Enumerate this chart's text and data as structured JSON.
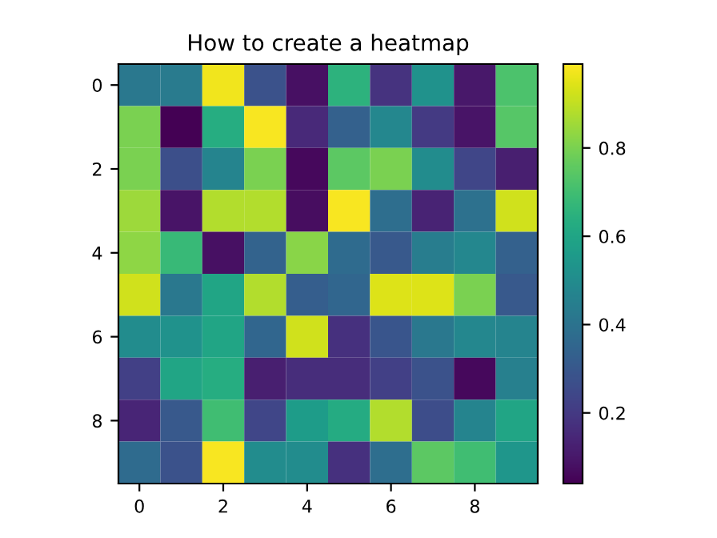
{
  "chart_data": {
    "type": "heatmap",
    "title": "How to create a heatmap",
    "categories": [
      "0",
      null,
      "2",
      null,
      "4",
      null,
      "6",
      null,
      "8",
      null
    ],
    "y_categories": [
      "0",
      null,
      "2",
      null,
      "4",
      null,
      "6",
      null,
      "8",
      null
    ],
    "cells": [
      [
        0.42,
        0.43,
        0.97,
        0.28,
        0.08,
        0.65,
        0.18,
        0.52,
        0.1,
        0.72
      ],
      [
        0.8,
        0.04,
        0.63,
        0.98,
        0.15,
        0.33,
        0.48,
        0.2,
        0.09,
        0.74
      ],
      [
        0.8,
        0.27,
        0.47,
        0.8,
        0.06,
        0.75,
        0.8,
        0.5,
        0.24,
        0.12
      ],
      [
        0.85,
        0.09,
        0.88,
        0.88,
        0.07,
        0.98,
        0.38,
        0.13,
        0.39,
        0.92
      ],
      [
        0.83,
        0.68,
        0.08,
        0.34,
        0.82,
        0.37,
        0.3,
        0.44,
        0.48,
        0.33
      ],
      [
        0.92,
        0.42,
        0.6,
        0.88,
        0.32,
        0.35,
        0.94,
        0.94,
        0.8,
        0.3
      ],
      [
        0.5,
        0.52,
        0.6,
        0.35,
        0.92,
        0.17,
        0.29,
        0.42,
        0.48,
        0.47
      ],
      [
        0.22,
        0.6,
        0.63,
        0.12,
        0.16,
        0.16,
        0.22,
        0.28,
        0.06,
        0.45
      ],
      [
        0.14,
        0.3,
        0.7,
        0.24,
        0.56,
        0.62,
        0.88,
        0.26,
        0.47,
        0.6
      ],
      [
        0.37,
        0.28,
        0.98,
        0.5,
        0.5,
        0.17,
        0.38,
        0.75,
        0.7,
        0.54
      ]
    ],
    "clim": [
      0.04,
      0.99
    ],
    "cticks": [
      0.2,
      0.4,
      0.6,
      0.8
    ]
  }
}
